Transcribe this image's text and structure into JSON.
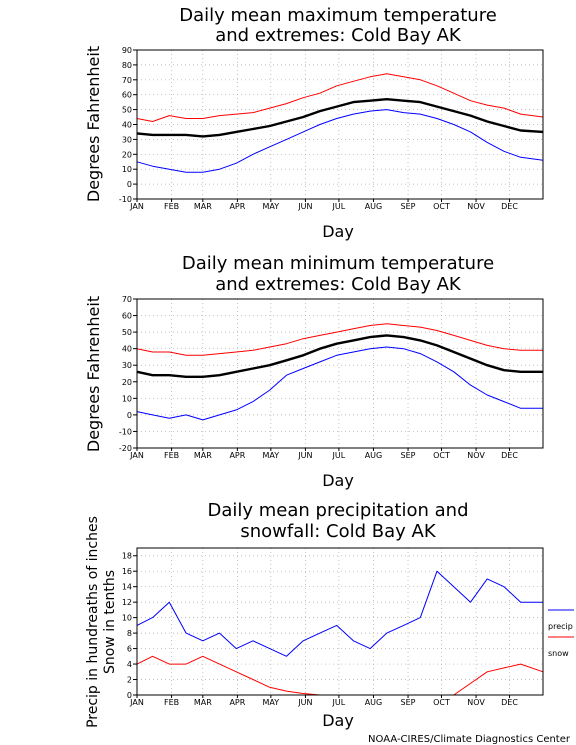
{
  "credit": "NOAA-CIRES/Climate Diagnostics Center",
  "chart_data": [
    {
      "type": "line",
      "title_line1": "Daily mean maximum temperature",
      "title_line2": "and extremes: Cold Bay AK",
      "xlabel": "Day",
      "ylabel": "Degrees Fahrenheit",
      "ylim": [
        -10,
        90
      ],
      "yticks": [
        -10,
        0,
        10,
        20,
        30,
        40,
        50,
        60,
        70,
        80,
        90
      ],
      "months": [
        "JAN",
        "FEB",
        "MAR",
        "APR",
        "MAY",
        "JUN",
        "JUL",
        "AUG",
        "SEP",
        "OCT",
        "NOV",
        "DEC"
      ],
      "grid": true,
      "x": [
        1,
        15,
        30,
        45,
        60,
        75,
        90,
        105,
        120,
        135,
        150,
        165,
        180,
        195,
        210,
        225,
        240,
        255,
        270,
        285,
        300,
        315,
        330,
        345,
        365
      ],
      "series": [
        {
          "color": "#000000",
          "values": [
            34,
            33,
            33,
            33,
            32,
            33,
            35,
            37,
            39,
            42,
            45,
            49,
            52,
            55,
            56,
            57,
            56,
            55,
            52,
            49,
            46,
            42,
            39,
            36,
            35
          ]
        },
        {
          "color": "#ff0000",
          "values": [
            44,
            42,
            46,
            44,
            44,
            46,
            47,
            48,
            51,
            54,
            58,
            61,
            66,
            69,
            72,
            74,
            72,
            70,
            66,
            61,
            56,
            53,
            51,
            47,
            45
          ]
        },
        {
          "color": "#0000ff",
          "values": [
            15,
            12,
            10,
            8,
            8,
            10,
            14,
            20,
            25,
            30,
            35,
            40,
            44,
            47,
            49,
            50,
            48,
            47,
            44,
            40,
            35,
            28,
            22,
            18,
            16
          ]
        }
      ]
    },
    {
      "type": "line",
      "title_line1": "Daily mean minimum temperature",
      "title_line2": "and extremes: Cold Bay AK",
      "xlabel": "Day",
      "ylabel": "Degrees Fahrenheit",
      "ylim": [
        -20,
        70
      ],
      "yticks": [
        -20,
        -10,
        0,
        10,
        20,
        30,
        40,
        50,
        60,
        70
      ],
      "months": [
        "JAN",
        "FEB",
        "MAR",
        "APR",
        "MAY",
        "JUN",
        "JUL",
        "AUG",
        "SEP",
        "OCT",
        "NOV",
        "DEC"
      ],
      "grid": true,
      "x": [
        1,
        15,
        30,
        45,
        60,
        75,
        90,
        105,
        120,
        135,
        150,
        165,
        180,
        195,
        210,
        225,
        240,
        255,
        270,
        285,
        300,
        315,
        330,
        345,
        365
      ],
      "series": [
        {
          "color": "#000000",
          "values": [
            26,
            24,
            24,
            23,
            23,
            24,
            26,
            28,
            30,
            33,
            36,
            40,
            43,
            45,
            47,
            48,
            47,
            45,
            42,
            38,
            34,
            30,
            27,
            26,
            26
          ]
        },
        {
          "color": "#ff0000",
          "values": [
            40,
            38,
            38,
            36,
            36,
            37,
            38,
            39,
            41,
            43,
            46,
            48,
            50,
            52,
            54,
            55,
            54,
            53,
            51,
            48,
            45,
            42,
            40,
            39,
            39
          ]
        },
        {
          "color": "#0000ff",
          "values": [
            2,
            0,
            -2,
            0,
            -3,
            0,
            3,
            8,
            15,
            24,
            28,
            32,
            36,
            38,
            40,
            41,
            40,
            37,
            32,
            26,
            18,
            12,
            8,
            4,
            4
          ]
        }
      ]
    },
    {
      "type": "line",
      "title_line1": "Daily mean precipitation and",
      "title_line2": "snowfall: Cold Bay AK",
      "xlabel": "Day",
      "ylabel_line1": "Precip in hundreaths of inches",
      "ylabel_line2": "Snow in tenths",
      "ylim": [
        0,
        19
      ],
      "yticks": [
        0,
        2,
        4,
        6,
        8,
        10,
        12,
        14,
        16,
        18
      ],
      "months": [
        "JAN",
        "FEB",
        "MAR",
        "APR",
        "MAY",
        "JUN",
        "JUL",
        "AUG",
        "SEP",
        "OCT",
        "NOV",
        "DEC"
      ],
      "grid": true,
      "x": [
        1,
        15,
        30,
        45,
        60,
        75,
        90,
        105,
        120,
        135,
        150,
        165,
        180,
        195,
        210,
        225,
        240,
        255,
        270,
        285,
        300,
        315,
        330,
        345,
        365
      ],
      "series": [
        {
          "name": "precip",
          "color": "#0000ff",
          "values": [
            9,
            10,
            12,
            8,
            7,
            8,
            6,
            7,
            6,
            5,
            7,
            8,
            9,
            7,
            6,
            8,
            9,
            10,
            16,
            14,
            12,
            15,
            14,
            12,
            12
          ]
        },
        {
          "name": "snow",
          "color": "#ff0000",
          "values": [
            4,
            5,
            4,
            4,
            5,
            4,
            3,
            2,
            1,
            0.5,
            0.2,
            0,
            0,
            0,
            0,
            0,
            0,
            0,
            0,
            0,
            1.5,
            3,
            3.5,
            4,
            3
          ]
        }
      ]
    }
  ]
}
